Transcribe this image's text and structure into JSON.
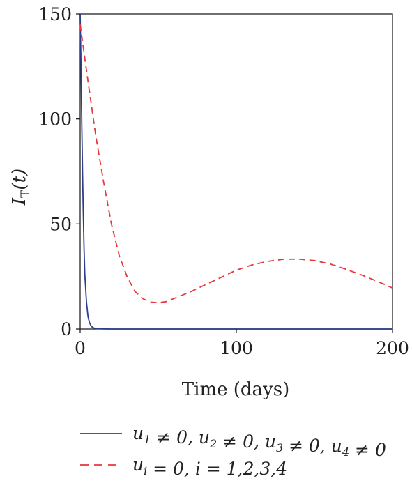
{
  "chart_data": {
    "type": "line",
    "title": "",
    "xlabel": "Time (days)",
    "ylabel": "I_T(t)",
    "ylabel_parts": {
      "base": "I",
      "sub": "T",
      "arg": "(t)"
    },
    "xlim": [
      0,
      200
    ],
    "ylim": [
      0,
      150
    ],
    "xticks": [
      0,
      100,
      200
    ],
    "yticks": [
      0,
      50,
      100,
      150
    ],
    "grid": false,
    "legend_position": "bottom",
    "series": [
      {
        "name": "u1 ≠ 0, u2 ≠ 0, u3 ≠ 0, u4 ≠ 0",
        "color": "#2b3f8c",
        "style": "solid",
        "x": [
          0,
          0.5,
          1,
          1.5,
          2,
          2.5,
          3,
          4,
          5,
          6,
          7,
          8,
          10,
          15,
          20,
          50,
          100,
          150,
          200
        ],
        "y": [
          150,
          128,
          100,
          75,
          55,
          38,
          26,
          13,
          6,
          3,
          1.5,
          0.7,
          0.2,
          0.05,
          0,
          0,
          0,
          0,
          0
        ]
      },
      {
        "name": "ui = 0, i = 1,2,3,4",
        "color": "#e8383d",
        "style": "dashed",
        "x": [
          0,
          5,
          10,
          15,
          20,
          25,
          30,
          35,
          40,
          45,
          50,
          55,
          60,
          70,
          80,
          90,
          100,
          110,
          120,
          130,
          140,
          150,
          160,
          170,
          180,
          190,
          200
        ],
        "y": [
          145,
          118,
          92,
          70,
          50,
          35,
          25,
          18,
          14.5,
          12.8,
          12.5,
          13,
          14.5,
          17.5,
          21,
          24.5,
          28,
          30.5,
          32.2,
          33.2,
          33.3,
          32.6,
          31,
          28.5,
          25.8,
          22.8,
          19.5
        ]
      }
    ]
  },
  "legend": {
    "entries": [
      {
        "segments": [
          {
            "t": "u"
          },
          {
            "sub": "1"
          },
          {
            "t": " ≠ 0, u"
          },
          {
            "sub": "2"
          },
          {
            "t": " ≠ 0, u"
          },
          {
            "sub": "3"
          },
          {
            "t": " ≠ 0, u"
          },
          {
            "sub": "4"
          },
          {
            "t": " ≠ 0"
          }
        ]
      },
      {
        "segments": [
          {
            "t": "u"
          },
          {
            "sub": "i"
          },
          {
            "t": " = 0, i = 1,2,3,4"
          }
        ]
      }
    ]
  }
}
